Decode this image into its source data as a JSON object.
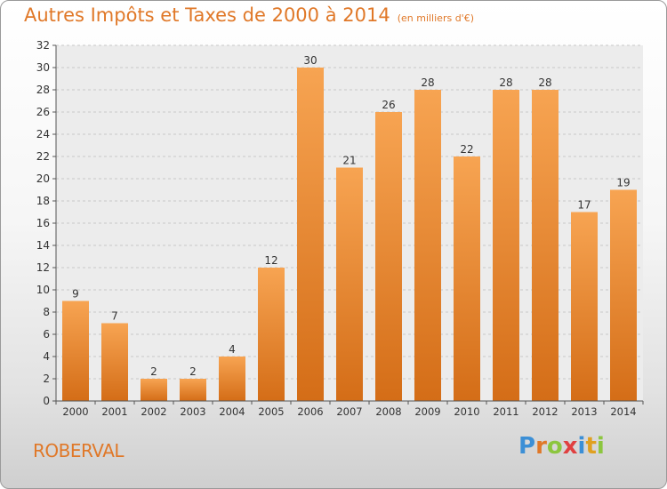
{
  "title": "Autres Impôts et Taxes de 2000 à 2014",
  "unit_note": "(en milliers d'€)",
  "region_label": "ROBERVAL",
  "logo": {
    "letters": [
      "P",
      "r",
      "o",
      "x",
      "i",
      "t",
      "i"
    ]
  },
  "colors": {
    "accent": "#e07828",
    "bar_top": "#f7a452",
    "bar_bottom": "#d46d17"
  },
  "chart_data": {
    "type": "bar",
    "title": "Autres Impôts et Taxes de 2000 à 2014",
    "categories": [
      "2000",
      "2001",
      "2002",
      "2003",
      "2004",
      "2005",
      "2006",
      "2007",
      "2008",
      "2009",
      "2010",
      "2011",
      "2012",
      "2013",
      "2014"
    ],
    "values": [
      9,
      7,
      2,
      2,
      4,
      12,
      30,
      21,
      26,
      28,
      22,
      28,
      28,
      17,
      19
    ],
    "ylim": [
      0,
      32
    ],
    "yticks": [
      0,
      2,
      4,
      6,
      8,
      10,
      12,
      14,
      16,
      18,
      20,
      22,
      24,
      26,
      28,
      30,
      32
    ],
    "grid": true,
    "data_labels": true
  }
}
